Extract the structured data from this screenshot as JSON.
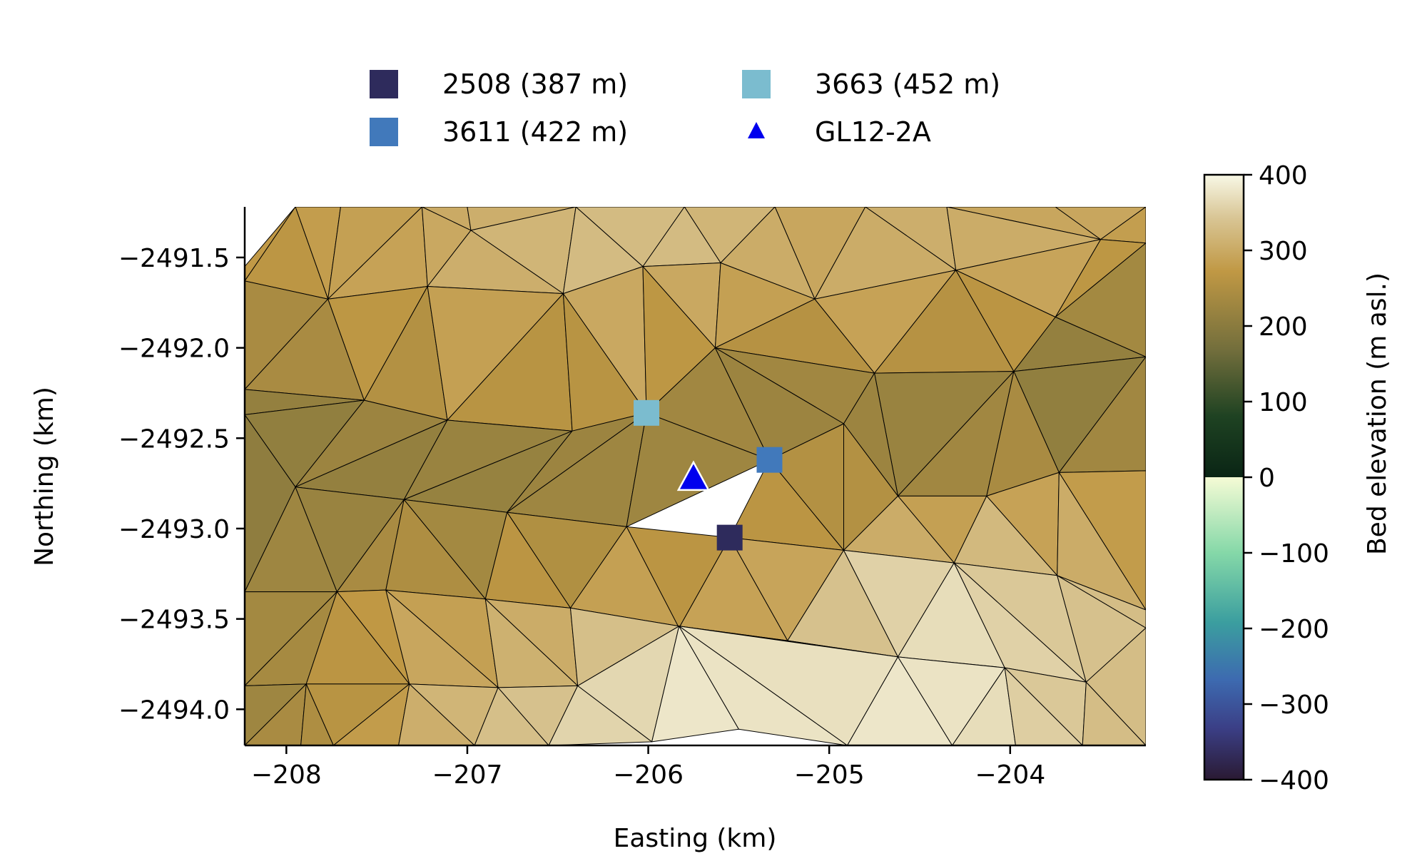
{
  "chart_data": {
    "type": "scatter",
    "subtype": "triangulated-mesh-map",
    "title": "",
    "xlabel": "Easting (km)",
    "ylabel": "Northing (km)",
    "xlim": [
      -208.23,
      -203.25
    ],
    "ylim": [
      -2494.2,
      -2491.22
    ],
    "xticks": [
      -208,
      -207,
      -206,
      -205,
      -204
    ],
    "yticks": [
      -2491.5,
      -2492.0,
      -2492.5,
      -2493.0,
      -2493.5,
      -2494.0
    ],
    "xtick_labels": [
      "−208",
      "−207",
      "−206",
      "−205",
      "−204"
    ],
    "ytick_labels": [
      "−2491.5",
      "−2492.0",
      "−2492.5",
      "−2493.0",
      "−2493.5",
      "−2494.0"
    ],
    "grid": false,
    "legend_position": "top",
    "series": [
      {
        "name": "2508 (387 m)",
        "marker": "square",
        "color": "#2e2b5c",
        "x": [
          -205.55
        ],
        "y": [
          -2493.05
        ]
      },
      {
        "name": "3611 (422 m)",
        "marker": "square",
        "color": "#4179bb",
        "x": [
          -205.33
        ],
        "y": [
          -2492.62
        ]
      },
      {
        "name": "3663 (452 m)",
        "marker": "square",
        "color": "#7bbccf",
        "x": [
          -206.01
        ],
        "y": [
          -2492.36
        ]
      },
      {
        "name": "GL12-2A",
        "marker": "triangle",
        "color": "#0000ee",
        "x": [
          -205.75
        ],
        "y": [
          -2492.73
        ]
      }
    ],
    "colorbar": {
      "label": "Bed elevation (m asl.)",
      "range": [
        -400,
        400
      ],
      "ticks": [
        400,
        300,
        200,
        100,
        0,
        -100,
        -200,
        -300,
        -400
      ],
      "tick_labels": [
        "400",
        "300",
        "200",
        "100",
        "0",
        "−100",
        "−200",
        "−300",
        "−400"
      ]
    },
    "mesh": {
      "nodes": [
        [
          -208.23,
          -2491.55
        ],
        [
          -207.95,
          -2491.22
        ],
        [
          -207.7,
          -2491.22
        ],
        [
          -207.25,
          -2491.22
        ],
        [
          -207.0,
          -2491.22
        ],
        [
          -206.4,
          -2491.22
        ],
        [
          -205.8,
          -2491.22
        ],
        [
          -205.3,
          -2491.22
        ],
        [
          -204.8,
          -2491.22
        ],
        [
          -204.35,
          -2491.22
        ],
        [
          -203.75,
          -2491.22
        ],
        [
          -203.25,
          -2491.22
        ],
        [
          -206.98,
          -2491.35
        ],
        [
          -203.5,
          -2491.4
        ],
        [
          -203.25,
          -2491.42
        ],
        [
          -208.23,
          -2491.63
        ],
        [
          -207.77,
          -2491.73
        ],
        [
          -207.22,
          -2491.66
        ],
        [
          -206.47,
          -2491.7
        ],
        [
          -206.03,
          -2491.55
        ],
        [
          -205.6,
          -2491.53
        ],
        [
          -205.08,
          -2491.73
        ],
        [
          -204.3,
          -2491.57
        ],
        [
          -203.75,
          -2491.83
        ],
        [
          -208.23,
          -2492.23
        ],
        [
          -207.57,
          -2492.29
        ],
        [
          -207.11,
          -2492.4
        ],
        [
          -206.42,
          -2492.46
        ],
        [
          -206.01,
          -2492.36
        ],
        [
          -205.63,
          -2492.0
        ],
        [
          -204.75,
          -2492.14
        ],
        [
          -203.98,
          -2492.13
        ],
        [
          -203.25,
          -2492.05
        ],
        [
          -208.23,
          -2492.37
        ],
        [
          -207.95,
          -2492.77
        ],
        [
          -207.35,
          -2492.84
        ],
        [
          -206.78,
          -2492.91
        ],
        [
          -206.12,
          -2492.99
        ],
        [
          -205.55,
          -2493.05
        ],
        [
          -205.33,
          -2492.62
        ],
        [
          -204.92,
          -2492.42
        ],
        [
          -204.62,
          -2492.82
        ],
        [
          -204.13,
          -2492.82
        ],
        [
          -203.73,
          -2492.69
        ],
        [
          -203.25,
          -2492.68
        ],
        [
          -208.23,
          -2493.35
        ],
        [
          -207.72,
          -2493.35
        ],
        [
          -207.45,
          -2493.34
        ],
        [
          -206.9,
          -2493.39
        ],
        [
          -206.43,
          -2493.44
        ],
        [
          -205.83,
          -2493.55
        ],
        [
          -205.23,
          -2493.62
        ],
        [
          -204.92,
          -2493.12
        ],
        [
          -204.31,
          -2493.19
        ],
        [
          -203.74,
          -2493.26
        ],
        [
          -203.25,
          -2493.45
        ],
        [
          -208.23,
          -2493.87
        ],
        [
          -207.89,
          -2493.86
        ],
        [
          -207.32,
          -2493.86
        ],
        [
          -206.83,
          -2493.88
        ],
        [
          -206.39,
          -2493.87
        ],
        [
          -205.83,
          -2493.54
        ],
        [
          -204.62,
          -2493.71
        ],
        [
          -204.03,
          -2493.77
        ],
        [
          -203.58,
          -2493.85
        ],
        [
          -203.25,
          -2493.55
        ],
        [
          -208.23,
          -2494.2
        ],
        [
          -207.92,
          -2494.2
        ],
        [
          -207.74,
          -2494.2
        ],
        [
          -207.38,
          -2494.2
        ],
        [
          -206.96,
          -2494.2
        ],
        [
          -206.55,
          -2494.2
        ],
        [
          -205.98,
          -2494.18
        ],
        [
          -205.5,
          -2494.11
        ],
        [
          -204.9,
          -2494.2
        ],
        [
          -204.32,
          -2494.2
        ],
        [
          -203.97,
          -2494.2
        ],
        [
          -203.6,
          -2494.2
        ],
        [
          -203.25,
          -2494.2
        ],
        [
          -205.0,
          -2492.53
        ],
        [
          -205.75,
          -2492.73
        ],
        [
          -206.6,
          -2492.45
        ]
      ],
      "triangles": [
        [
          0,
          1,
          15
        ],
        [
          1,
          2,
          16
        ],
        [
          1,
          15,
          16
        ],
        [
          2,
          3,
          16
        ],
        [
          3,
          17,
          16
        ],
        [
          3,
          4,
          12
        ],
        [
          3,
          12,
          17
        ],
        [
          4,
          5,
          12
        ],
        [
          12,
          5,
          18
        ],
        [
          12,
          18,
          17
        ],
        [
          5,
          6,
          19
        ],
        [
          5,
          19,
          18
        ],
        [
          6,
          7,
          20
        ],
        [
          6,
          20,
          19
        ],
        [
          7,
          8,
          21
        ],
        [
          7,
          21,
          20
        ],
        [
          8,
          9,
          22
        ],
        [
          8,
          22,
          21
        ],
        [
          9,
          10,
          13
        ],
        [
          9,
          13,
          22
        ],
        [
          10,
          11,
          13
        ],
        [
          11,
          14,
          13
        ],
        [
          13,
          14,
          23
        ],
        [
          13,
          23,
          22
        ],
        [
          15,
          16,
          24
        ],
        [
          16,
          25,
          24
        ],
        [
          16,
          17,
          25
        ],
        [
          17,
          26,
          25
        ],
        [
          17,
          18,
          26
        ],
        [
          18,
          27,
          26
        ],
        [
          18,
          19,
          28
        ],
        [
          18,
          28,
          27
        ],
        [
          19,
          20,
          29
        ],
        [
          19,
          29,
          28
        ],
        [
          20,
          21,
          29
        ],
        [
          21,
          30,
          29
        ],
        [
          21,
          22,
          30
        ],
        [
          22,
          31,
          30
        ],
        [
          22,
          23,
          31
        ],
        [
          23,
          14,
          32
        ],
        [
          23,
          32,
          31
        ],
        [
          24,
          25,
          33
        ],
        [
          25,
          34,
          33
        ],
        [
          25,
          26,
          34
        ],
        [
          26,
          35,
          34
        ],
        [
          26,
          27,
          35
        ],
        [
          27,
          36,
          35
        ],
        [
          27,
          28,
          36
        ],
        [
          28,
          37,
          36
        ],
        [
          28,
          29,
          39
        ],
        [
          28,
          39,
          37
        ],
        [
          29,
          30,
          40
        ],
        [
          29,
          40,
          39
        ],
        [
          30,
          31,
          41
        ],
        [
          30,
          41,
          40
        ],
        [
          31,
          42,
          41
        ],
        [
          31,
          32,
          43
        ],
        [
          31,
          43,
          42
        ],
        [
          32,
          44,
          43
        ],
        [
          33,
          34,
          45
        ],
        [
          34,
          46,
          45
        ],
        [
          34,
          35,
          46
        ],
        [
          35,
          47,
          46
        ],
        [
          35,
          36,
          48
        ],
        [
          35,
          48,
          47
        ],
        [
          36,
          37,
          49
        ],
        [
          36,
          49,
          48
        ],
        [
          37,
          38,
          50
        ],
        [
          37,
          50,
          49
        ],
        [
          38,
          39,
          52
        ],
        [
          38,
          52,
          51
        ],
        [
          38,
          51,
          50
        ],
        [
          39,
          40,
          52
        ],
        [
          40,
          41,
          52
        ],
        [
          41,
          42,
          53
        ],
        [
          41,
          53,
          52
        ],
        [
          42,
          43,
          54
        ],
        [
          42,
          54,
          53
        ],
        [
          43,
          44,
          55
        ],
        [
          43,
          55,
          54
        ],
        [
          45,
          46,
          56
        ],
        [
          46,
          57,
          56
        ],
        [
          46,
          47,
          58
        ],
        [
          46,
          58,
          57
        ],
        [
          47,
          48,
          59
        ],
        [
          47,
          59,
          58
        ],
        [
          48,
          49,
          60
        ],
        [
          48,
          60,
          59
        ],
        [
          49,
          50,
          61
        ],
        [
          49,
          61,
          60
        ],
        [
          50,
          51,
          61
        ],
        [
          51,
          52,
          62
        ],
        [
          51,
          62,
          61
        ],
        [
          52,
          53,
          62
        ],
        [
          53,
          63,
          62
        ],
        [
          53,
          54,
          64
        ],
        [
          53,
          64,
          63
        ],
        [
          54,
          55,
          65
        ],
        [
          54,
          65,
          64
        ],
        [
          56,
          57,
          66
        ],
        [
          57,
          67,
          66
        ],
        [
          57,
          58,
          68
        ],
        [
          57,
          68,
          67
        ],
        [
          58,
          69,
          68
        ],
        [
          58,
          59,
          70
        ],
        [
          58,
          70,
          69
        ],
        [
          59,
          71,
          70
        ],
        [
          59,
          60,
          71
        ],
        [
          60,
          72,
          71
        ],
        [
          60,
          61,
          72
        ],
        [
          61,
          73,
          72
        ],
        [
          61,
          62,
          74
        ],
        [
          61,
          74,
          73
        ],
        [
          62,
          75,
          74
        ],
        [
          62,
          63,
          75
        ],
        [
          63,
          76,
          75
        ],
        [
          63,
          64,
          77
        ],
        [
          63,
          77,
          76
        ],
        [
          64,
          65,
          78
        ],
        [
          64,
          78,
          77
        ]
      ],
      "node_elevation": [
        290,
        285,
        280,
        300,
        300,
        320,
        330,
        300,
        290,
        300,
        300,
        300,
        300,
        280,
        260,
        240,
        270,
        290,
        330,
        330,
        320,
        290,
        330,
        260,
        210,
        240,
        230,
        220,
        230,
        240,
        240,
        200,
        180,
        190,
        200,
        210,
        220,
        230,
        240,
        220,
        210,
        220,
        270,
        250,
        260,
        230,
        250,
        260,
        270,
        300,
        320,
        300,
        330,
        360,
        340,
        320,
        220,
        240,
        300,
        320,
        340,
        360,
        380,
        370,
        340,
        330,
        220,
        260,
        240,
        290,
        330,
        350,
        390,
        390,
        380,
        380,
        360,
        330,
        320,
        210,
        220,
        230
      ]
    }
  }
}
